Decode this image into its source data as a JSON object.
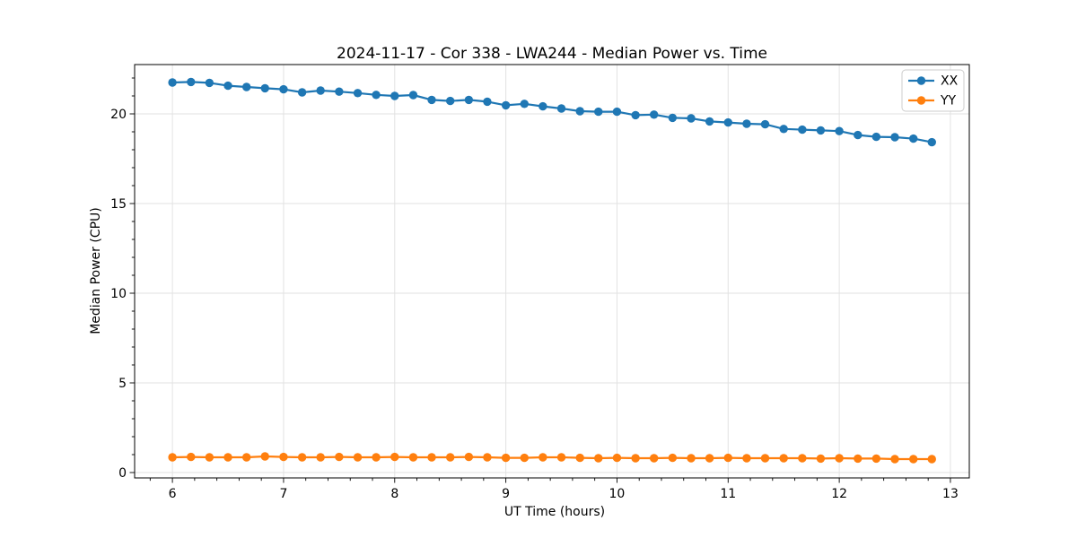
{
  "chart_data": {
    "type": "line",
    "title": "2024-11-17 - Cor 338 - LWA244 - Median Power vs. Time",
    "xlabel": "UT Time (hours)",
    "ylabel": "Median Power (CPU)",
    "xlim": [
      5.66,
      13.17
    ],
    "ylim": [
      -0.3,
      22.75
    ],
    "x_major_ticks": [
      6,
      7,
      8,
      9,
      10,
      11,
      12,
      13
    ],
    "x_minor_step": 0.2,
    "y_major_ticks": [
      0,
      5,
      10,
      15,
      20
    ],
    "y_minor_step": 1,
    "grid": "major-only",
    "grid_color": "#e2e2e2",
    "legend_position": "upper-right",
    "marker": "circle",
    "x": [
      6.0,
      6.167,
      6.333,
      6.5,
      6.667,
      6.833,
      7.0,
      7.167,
      7.333,
      7.5,
      7.667,
      7.833,
      8.0,
      8.167,
      8.333,
      8.5,
      8.667,
      8.833,
      9.0,
      9.167,
      9.333,
      9.5,
      9.667,
      9.833,
      10.0,
      10.167,
      10.333,
      10.5,
      10.667,
      10.833,
      11.0,
      11.167,
      11.333,
      11.5,
      11.667,
      11.833,
      12.0,
      12.167,
      12.333,
      12.5,
      12.667,
      12.833
    ],
    "series": [
      {
        "name": "XX",
        "color": "#1f77b4",
        "values": [
          21.75,
          21.78,
          21.73,
          21.57,
          21.5,
          21.43,
          21.37,
          21.2,
          21.3,
          21.24,
          21.16,
          21.06,
          21.0,
          21.05,
          20.78,
          20.72,
          20.78,
          20.68,
          20.48,
          20.56,
          20.42,
          20.3,
          20.15,
          20.12,
          20.12,
          19.93,
          19.96,
          19.78,
          19.75,
          19.58,
          19.52,
          19.45,
          19.42,
          19.16,
          19.12,
          19.08,
          19.04,
          18.82,
          18.72,
          18.7,
          18.62,
          18.42
        ]
      },
      {
        "name": "YY",
        "color": "#ff7f0e",
        "values": [
          0.85,
          0.87,
          0.85,
          0.85,
          0.85,
          0.9,
          0.87,
          0.85,
          0.85,
          0.87,
          0.85,
          0.85,
          0.87,
          0.85,
          0.85,
          0.85,
          0.87,
          0.85,
          0.82,
          0.82,
          0.85,
          0.85,
          0.82,
          0.8,
          0.82,
          0.8,
          0.8,
          0.82,
          0.8,
          0.8,
          0.82,
          0.8,
          0.8,
          0.8,
          0.8,
          0.78,
          0.8,
          0.78,
          0.78,
          0.75,
          0.75,
          0.75
        ]
      }
    ]
  }
}
